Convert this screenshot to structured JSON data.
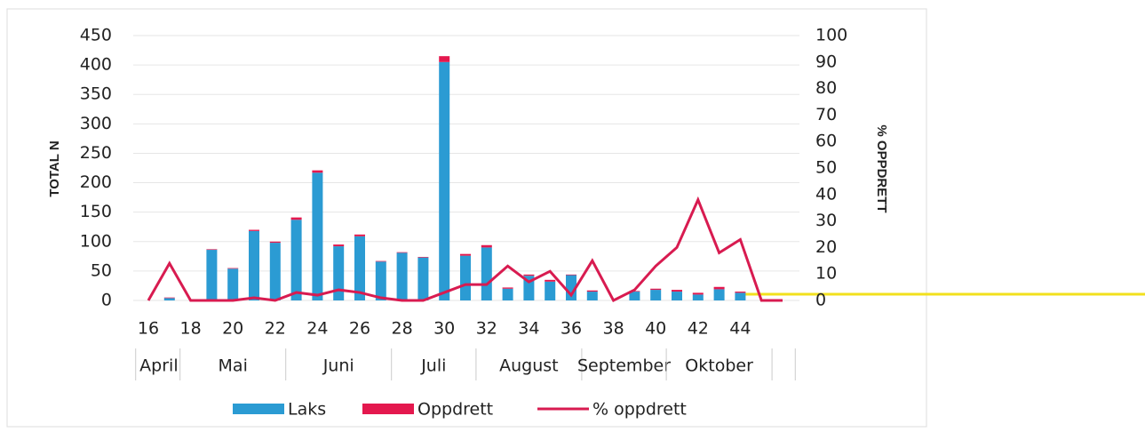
{
  "chart_data": {
    "type": "bar_line",
    "categories": [
      "16",
      null,
      "18",
      null,
      "20",
      null,
      "22",
      null,
      "24",
      null,
      "26",
      null,
      "28",
      null,
      "30",
      null,
      "32",
      null,
      "34",
      null,
      "36",
      null,
      "38",
      null,
      "40",
      null,
      "42",
      null,
      "44",
      null,
      null
    ],
    "months": [
      {
        "label": "April",
        "span": 2
      },
      {
        "label": "Mai",
        "span": 5
      },
      {
        "label": "Juni",
        "span": 5
      },
      {
        "label": "Juli",
        "span": 4
      },
      {
        "label": "August",
        "span": 5
      },
      {
        "label": "September",
        "span": 4
      },
      {
        "label": "Oktober",
        "span": 5
      }
    ],
    "ylabel": "TOTAL N",
    "y2label": "% OPPDRETT",
    "ylim": [
      0,
      450
    ],
    "yticks": [
      0,
      50,
      100,
      150,
      200,
      250,
      300,
      350,
      400,
      450
    ],
    "y2lim": [
      0,
      100
    ],
    "y2ticks": [
      0,
      10,
      20,
      30,
      40,
      50,
      60,
      70,
      80,
      90,
      100
    ],
    "series": [
      {
        "name": "Laks",
        "color": "#2b9bd3",
        "kind": "bar",
        "values": [
          0,
          4,
          0,
          86,
          54,
          118,
          98,
          137,
          217,
          92,
          109,
          66,
          81,
          73,
          405,
          76,
          90,
          20,
          42,
          32,
          43,
          15,
          0,
          15,
          18,
          15,
          10,
          19,
          13,
          0,
          0
        ]
      },
      {
        "name": "Oppdrett",
        "color": "#e4184e",
        "kind": "bar",
        "values": [
          0,
          1,
          0,
          1,
          1,
          2,
          2,
          4,
          4,
          3,
          3,
          1,
          1,
          1,
          10,
          3,
          4,
          2,
          2,
          3,
          1,
          2,
          0,
          1,
          2,
          3,
          3,
          4,
          2,
          0,
          0
        ]
      },
      {
        "name": "% oppdrett",
        "color": "#d81b50",
        "kind": "line",
        "axis": "y2",
        "values": [
          0,
          14,
          0,
          0,
          0,
          1,
          0,
          3,
          2,
          4,
          3,
          1,
          0,
          0,
          3,
          6,
          6,
          13,
          7,
          11,
          2,
          15,
          0,
          4,
          13,
          20,
          38,
          18,
          23,
          0,
          0
        ]
      }
    ]
  }
}
